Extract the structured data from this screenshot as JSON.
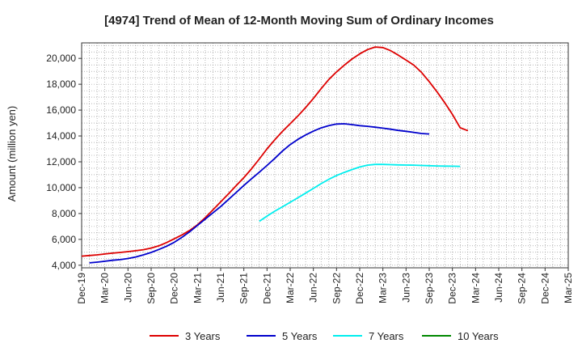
{
  "chart_data": {
    "type": "line",
    "title": "[4974]  Trend of Mean of 12-Month Moving Sum of Ordinary Incomes",
    "xlabel": "",
    "ylabel": "Amount (million yen)",
    "ylim": [
      3800,
      21200
    ],
    "yticks": [
      4000,
      6000,
      8000,
      10000,
      12000,
      14000,
      16000,
      18000,
      20000
    ],
    "ytick_labels": [
      "4,000",
      "6,000",
      "8,000",
      "10,000",
      "12,000",
      "14,000",
      "16,000",
      "18,000",
      "20,000"
    ],
    "x_tick_labels": [
      "Dec-19",
      "Mar-20",
      "Jun-20",
      "Sep-20",
      "Dec-20",
      "Mar-21",
      "Jun-21",
      "Sep-21",
      "Dec-21",
      "Mar-22",
      "Jun-22",
      "Sep-22",
      "Dec-22",
      "Mar-23",
      "Jun-23",
      "Sep-23",
      "Dec-23",
      "Mar-24",
      "Jun-24",
      "Sep-24",
      "Dec-24",
      "Mar-25"
    ],
    "grid": true,
    "legend_position": "bottom",
    "series": [
      {
        "name": "3 Years",
        "color": "#dd0000",
        "start_index": 0,
        "values": [
          4700,
          4750,
          4800,
          4870,
          4930,
          4990,
          5050,
          5120,
          5200,
          5330,
          5500,
          5750,
          6050,
          6350,
          6700,
          7130,
          7680,
          8280,
          8900,
          9520,
          10150,
          10780,
          11460,
          12220,
          13000,
          13700,
          14350,
          14950,
          15550,
          16200,
          16900,
          17650,
          18370,
          18950,
          19470,
          19950,
          20350,
          20680,
          20880,
          20840,
          20600,
          20250,
          19870,
          19480,
          18920,
          18200,
          17420,
          16580,
          15670,
          14640,
          14400
        ]
      },
      {
        "name": "5 Years",
        "color": "#0000cc",
        "start_index": 1,
        "values": [
          4180,
          4240,
          4310,
          4380,
          4430,
          4520,
          4640,
          4800,
          4990,
          5220,
          5470,
          5780,
          6160,
          6600,
          7080,
          7570,
          8050,
          8540,
          9080,
          9620,
          10170,
          10690,
          11200,
          11720,
          12260,
          12830,
          13330,
          13740,
          14080,
          14370,
          14620,
          14800,
          14920,
          14940,
          14880,
          14800,
          14750,
          14680,
          14600,
          14520,
          14430,
          14360,
          14280,
          14190,
          14150
        ]
      },
      {
        "name": "7 Years",
        "color": "#00eeee",
        "start_index": 23,
        "values": [
          7400,
          7800,
          8180,
          8520,
          8870,
          9220,
          9580,
          9940,
          10310,
          10650,
          10940,
          11180,
          11400,
          11600,
          11740,
          11800,
          11800,
          11780,
          11760,
          11750,
          11740,
          11720,
          11700,
          11680,
          11670,
          11660,
          11650
        ]
      },
      {
        "name": "10 Years",
        "color": "#008800",
        "start_index": 0,
        "values": []
      }
    ]
  }
}
